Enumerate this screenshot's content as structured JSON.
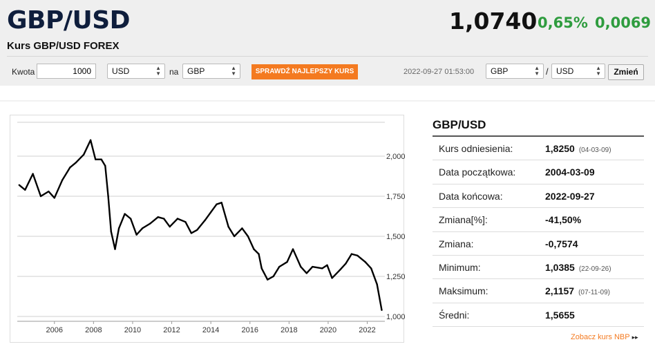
{
  "header": {
    "pair": "GBP/USD",
    "subtitle": "Kurs GBP/USD FOREX",
    "rate": "1,0740",
    "change_pct": "0,65%",
    "change_abs": "0,0069"
  },
  "converter": {
    "amount_label": "Kwota",
    "amount_value": "1000",
    "from_currency": "USD",
    "to_label": "na",
    "to_currency": "GBP",
    "best_rate_button": "SPRAWDŹ NAJLEPSZY KURS"
  },
  "pair_switch": {
    "timestamp": "2022-09-27 01:53:00",
    "base": "GBP",
    "separator": "/",
    "quote": "USD",
    "change_button": "Zmień"
  },
  "stats": {
    "title": "GBP/USD",
    "rows": [
      {
        "label": "Kurs odniesienia:",
        "value": "1,8250",
        "date": "(04-03-09)"
      },
      {
        "label": "Data początkowa:",
        "value": "2004-03-09",
        "date": ""
      },
      {
        "label": "Data końcowa:",
        "value": "2022-09-27",
        "date": ""
      },
      {
        "label": "Zmiana[%]:",
        "value": "-41,50%",
        "date": ""
      },
      {
        "label": "Zmiana:",
        "value": "-0,7574",
        "date": ""
      },
      {
        "label": "Minimum:",
        "value": "1,0385",
        "date": "(22-09-26)"
      },
      {
        "label": "Maksimum:",
        "value": "2,1157",
        "date": "(07-11-09)"
      },
      {
        "label": "Średni:",
        "value": "1,5655",
        "date": ""
      }
    ],
    "nbp_link": "Zobacz kurs NBP"
  },
  "colors": {
    "accent_orange": "#f47a20",
    "positive_green": "#2e9c3e",
    "title_navy": "#0f1e3c"
  },
  "chart_data": {
    "type": "line",
    "series": [
      {
        "x": [
          2004.2,
          2004.5,
          2004.9,
          2005.3,
          2005.7,
          2006.0,
          2006.4,
          2006.8,
          2007.1,
          2007.5,
          2007.85,
          2008.1,
          2008.4,
          2008.6,
          2008.75,
          2008.9,
          2009.1,
          2009.3,
          2009.6,
          2009.9,
          2010.2,
          2010.5,
          2010.9,
          2011.3,
          2011.6,
          2011.9,
          2012.3,
          2012.7,
          2013.0,
          2013.3,
          2013.7,
          2014.0,
          2014.3,
          2014.55,
          2014.9,
          2015.2,
          2015.6,
          2015.9,
          2016.2,
          2016.45,
          2016.6,
          2016.9,
          2017.2,
          2017.5,
          2017.9,
          2018.2,
          2018.6,
          2018.9,
          2019.2,
          2019.7,
          2019.95,
          2020.2,
          2020.6,
          2020.9,
          2021.2,
          2021.5,
          2021.9,
          2022.2,
          2022.5,
          2022.74
        ],
        "y": [
          1.82,
          1.79,
          1.89,
          1.75,
          1.78,
          1.74,
          1.85,
          1.93,
          1.96,
          2.01,
          2.1,
          1.98,
          1.98,
          1.94,
          1.75,
          1.53,
          1.42,
          1.55,
          1.64,
          1.61,
          1.51,
          1.55,
          1.58,
          1.62,
          1.61,
          1.56,
          1.61,
          1.59,
          1.52,
          1.54,
          1.6,
          1.65,
          1.7,
          1.71,
          1.56,
          1.5,
          1.55,
          1.5,
          1.42,
          1.39,
          1.3,
          1.23,
          1.25,
          1.31,
          1.34,
          1.42,
          1.31,
          1.27,
          1.31,
          1.3,
          1.32,
          1.24,
          1.29,
          1.33,
          1.39,
          1.38,
          1.34,
          1.3,
          1.2,
          1.04
        ]
      }
    ],
    "x_ticks": [
      "2006",
      "2008",
      "2010",
      "2012",
      "2014",
      "2016",
      "2018",
      "2020",
      "2022"
    ],
    "y_ticks": [
      "1,0000",
      "1,2500",
      "1,5000",
      "1,7500",
      "2,0000"
    ],
    "xlim": [
      2004.1,
      2022.9
    ],
    "ylim": [
      0.97,
      2.22
    ],
    "grid": "horizontal"
  }
}
